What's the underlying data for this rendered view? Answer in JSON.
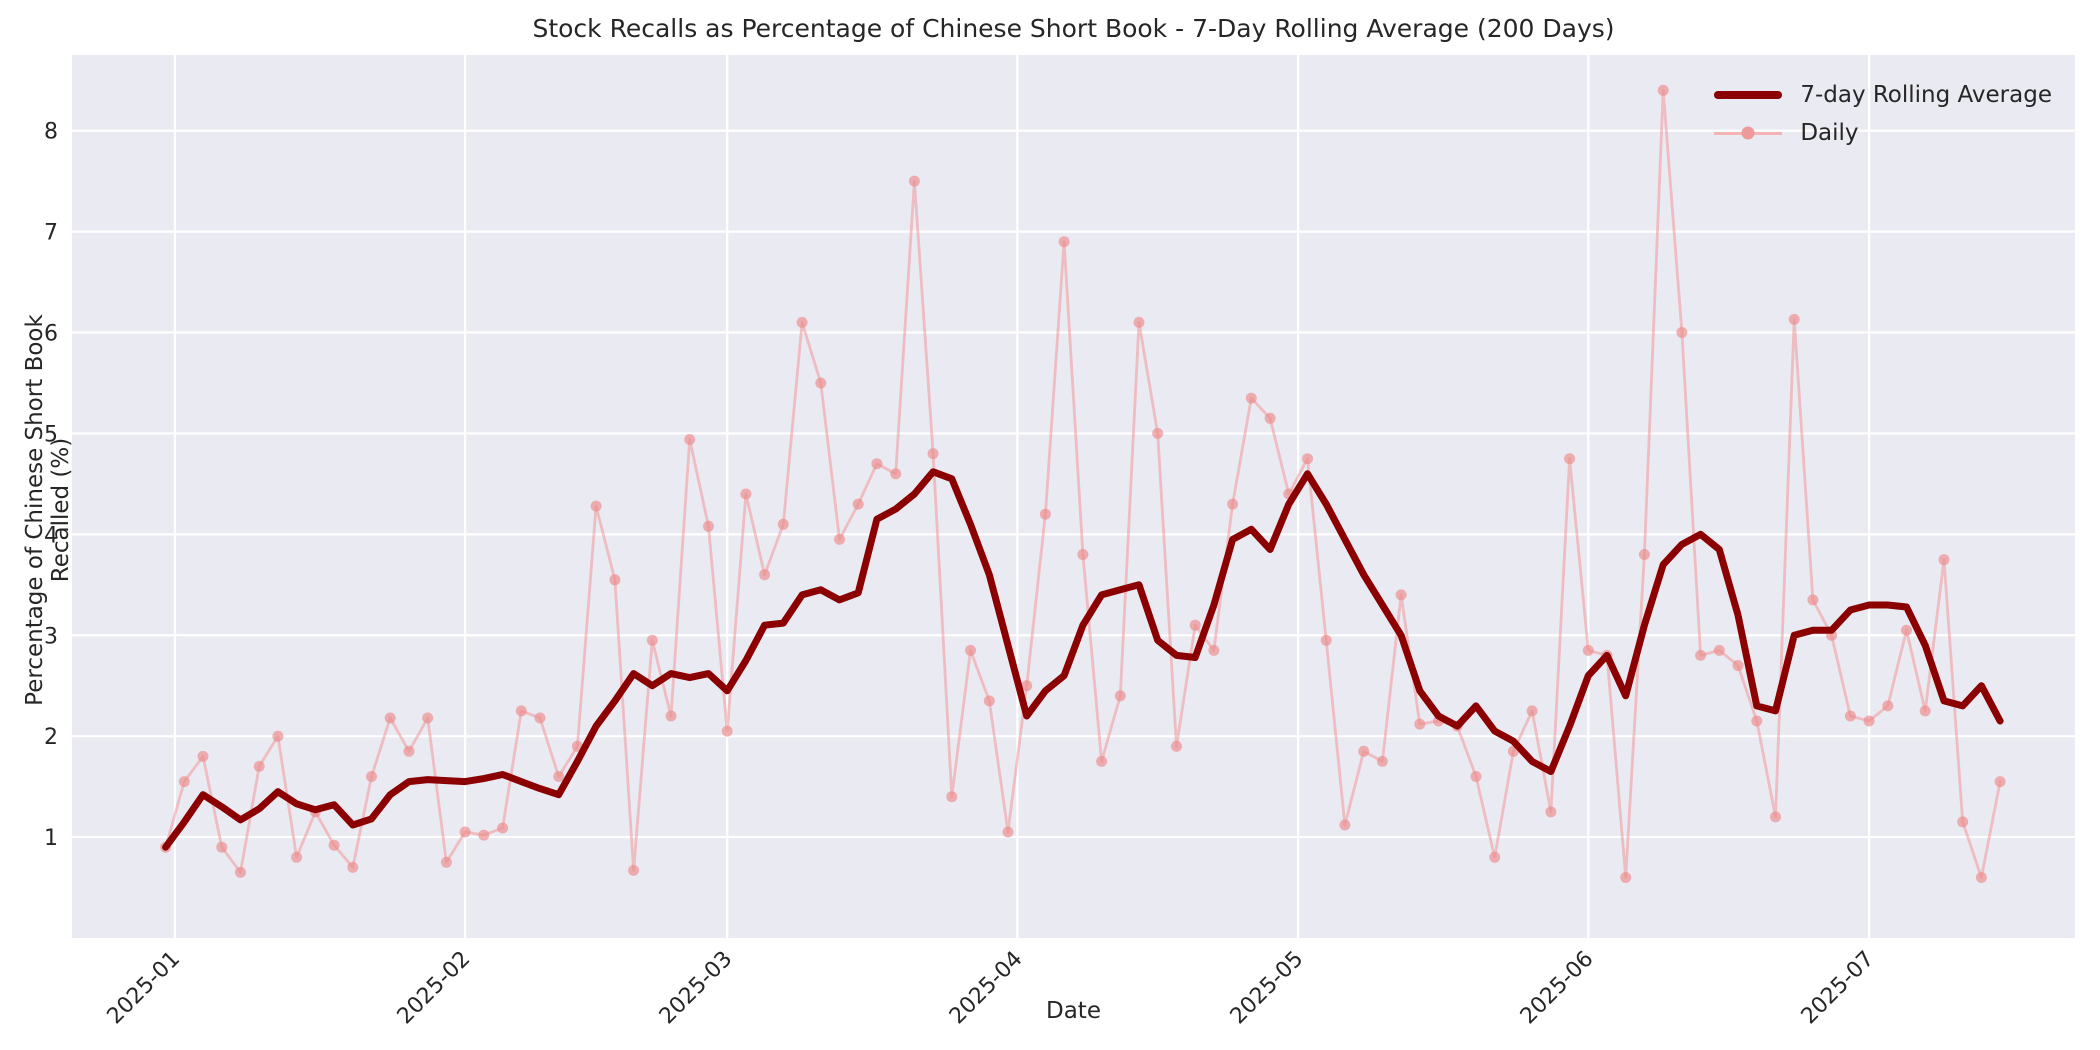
{
  "title": {
    "text": "Stock Recalls as Percentage of Chinese Short Book - 7-Day Rolling Average (200 Days)"
  },
  "axes": {
    "xlabel": "Date",
    "ylabel": "Percentage of Chinese Short Book Recalled (%)"
  },
  "legend": {
    "items": [
      {
        "label": "7-day Rolling Average",
        "series": "rolling_avg"
      },
      {
        "label": "Daily",
        "series": "daily"
      }
    ],
    "position": "upper right"
  },
  "colors": {
    "rolling_avg": "#8b0000",
    "daily_line": "#ef8f8f",
    "daily_marker": "#ec8a8a",
    "plot_background": "#eaeaf2",
    "grid": "#ffffff",
    "text": "#262626",
    "figure_background": "#ffffff"
  },
  "chart_data": {
    "type": "line",
    "title": "Stock Recalls as Percentage of Chinese Short Book - 7-Day Rolling Average (200 Days)",
    "xlabel": "Date",
    "ylabel": "Percentage of Chinese Short Book Recalled (%)",
    "grid": true,
    "legend_position": "upper right",
    "ylim": [
      0,
      8.75
    ],
    "xlim_dates": [
      "2024-12-21",
      "2025-07-23"
    ],
    "y_ticks": [
      1,
      2,
      3,
      4,
      5,
      6,
      7,
      8
    ],
    "x_ticks": [
      {
        "label": "2025-01",
        "date": "2025-01-01"
      },
      {
        "label": "2025-02",
        "date": "2025-02-01"
      },
      {
        "label": "2025-03",
        "date": "2025-03-01"
      },
      {
        "label": "2025-04",
        "date": "2025-04-01"
      },
      {
        "label": "2025-05",
        "date": "2025-05-01"
      },
      {
        "label": "2025-06",
        "date": "2025-06-01"
      },
      {
        "label": "2025-07",
        "date": "2025-07-01"
      }
    ],
    "x_dates": [
      "2024-12-31",
      "2025-01-02",
      "2025-01-04",
      "2025-01-06",
      "2025-01-08",
      "2025-01-10",
      "2025-01-12",
      "2025-01-14",
      "2025-01-16",
      "2025-01-18",
      "2025-01-20",
      "2025-01-22",
      "2025-01-24",
      "2025-01-26",
      "2025-01-28",
      "2025-01-30",
      "2025-02-01",
      "2025-02-03",
      "2025-02-05",
      "2025-02-07",
      "2025-02-09",
      "2025-02-11",
      "2025-02-13",
      "2025-02-15",
      "2025-02-17",
      "2025-02-19",
      "2025-02-21",
      "2025-02-23",
      "2025-02-25",
      "2025-02-27",
      "2025-03-01",
      "2025-03-03",
      "2025-03-05",
      "2025-03-07",
      "2025-03-09",
      "2025-03-11",
      "2025-03-13",
      "2025-03-15",
      "2025-03-17",
      "2025-03-19",
      "2025-03-21",
      "2025-03-23",
      "2025-03-25",
      "2025-03-27",
      "2025-03-29",
      "2025-03-31",
      "2025-04-02",
      "2025-04-04",
      "2025-04-06",
      "2025-04-08",
      "2025-04-10",
      "2025-04-12",
      "2025-04-14",
      "2025-04-16",
      "2025-04-18",
      "2025-04-20",
      "2025-04-22",
      "2025-04-24",
      "2025-04-26",
      "2025-04-28",
      "2025-04-30",
      "2025-05-02",
      "2025-05-04",
      "2025-05-06",
      "2025-05-08",
      "2025-05-10",
      "2025-05-12",
      "2025-05-14",
      "2025-05-16",
      "2025-05-18",
      "2025-05-20",
      "2025-05-22",
      "2025-05-24",
      "2025-05-26",
      "2025-05-28",
      "2025-05-30",
      "2025-06-01",
      "2025-06-03",
      "2025-06-05",
      "2025-06-07",
      "2025-06-09",
      "2025-06-11",
      "2025-06-13",
      "2025-06-15",
      "2025-06-17",
      "2025-06-19",
      "2025-06-21",
      "2025-06-23",
      "2025-06-25",
      "2025-06-27",
      "2025-06-29",
      "2025-07-01",
      "2025-07-03",
      "2025-07-05",
      "2025-07-07",
      "2025-07-09",
      "2025-07-11",
      "2025-07-13",
      "2025-07-15"
    ],
    "series": [
      {
        "name": "Daily",
        "color": "#ef8f8f",
        "line_opacity": 0.5,
        "linewidth": 2.8,
        "markers": true,
        "marker_radius": 5.5,
        "values": [
          0.9,
          1.55,
          1.8,
          0.9,
          0.65,
          1.7,
          2.0,
          0.8,
          1.25,
          0.92,
          0.7,
          1.6,
          2.18,
          1.85,
          2.18,
          0.75,
          1.05,
          1.02,
          1.09,
          2.25,
          2.18,
          1.6,
          1.9,
          4.28,
          3.55,
          0.67,
          2.95,
          2.2,
          4.94,
          4.08,
          2.05,
          4.4,
          3.6,
          4.1,
          6.1,
          5.5,
          3.95,
          4.3,
          4.7,
          4.6,
          7.5,
          4.8,
          1.4,
          2.85,
          2.35,
          1.05,
          2.5,
          4.2,
          6.9,
          3.8,
          1.75,
          2.4,
          6.1,
          5.0,
          1.9,
          3.1,
          2.85,
          4.3,
          5.35,
          5.15,
          4.4,
          4.75,
          2.95,
          1.12,
          1.85,
          1.75,
          3.4,
          2.12,
          2.15,
          2.1,
          1.6,
          0.8,
          1.85,
          2.25,
          1.25,
          4.75,
          2.85,
          2.8,
          0.6,
          3.8,
          8.4,
          6.0,
          2.8,
          2.85,
          2.7,
          2.15,
          1.2,
          6.13,
          3.35,
          3.0,
          2.2,
          2.15,
          2.3,
          3.05,
          2.25,
          3.75,
          1.15,
          0.6,
          1.55
        ]
      },
      {
        "name": "7-day Rolling Average",
        "color": "#8b0000",
        "line_opacity": 1,
        "linewidth": 7,
        "markers": false,
        "marker_radius": 0,
        "values": [
          0.9,
          1.15,
          1.42,
          1.3,
          1.17,
          1.28,
          1.45,
          1.33,
          1.27,
          1.32,
          1.12,
          1.18,
          1.42,
          1.55,
          1.57,
          1.56,
          1.55,
          1.58,
          1.62,
          1.55,
          1.48,
          1.42,
          1.75,
          2.1,
          2.35,
          2.62,
          2.5,
          2.62,
          2.58,
          2.62,
          2.45,
          2.75,
          3.1,
          3.12,
          3.4,
          3.45,
          3.35,
          3.42,
          4.15,
          4.25,
          4.4,
          4.62,
          4.55,
          4.1,
          3.6,
          2.9,
          2.2,
          2.45,
          2.6,
          3.1,
          3.4,
          3.45,
          3.5,
          2.95,
          2.8,
          2.78,
          3.3,
          3.95,
          4.05,
          3.85,
          4.3,
          4.6,
          4.3,
          3.95,
          3.6,
          3.3,
          3.0,
          2.45,
          2.2,
          2.1,
          2.3,
          2.05,
          1.95,
          1.75,
          1.65,
          2.1,
          2.6,
          2.8,
          2.4,
          3.1,
          3.7,
          3.9,
          4.0,
          3.85,
          3.2,
          2.3,
          2.25,
          3.0,
          3.05,
          3.05,
          3.25,
          3.3,
          3.3,
          3.28,
          2.9,
          2.35,
          2.3,
          2.5,
          2.15
        ]
      }
    ]
  }
}
